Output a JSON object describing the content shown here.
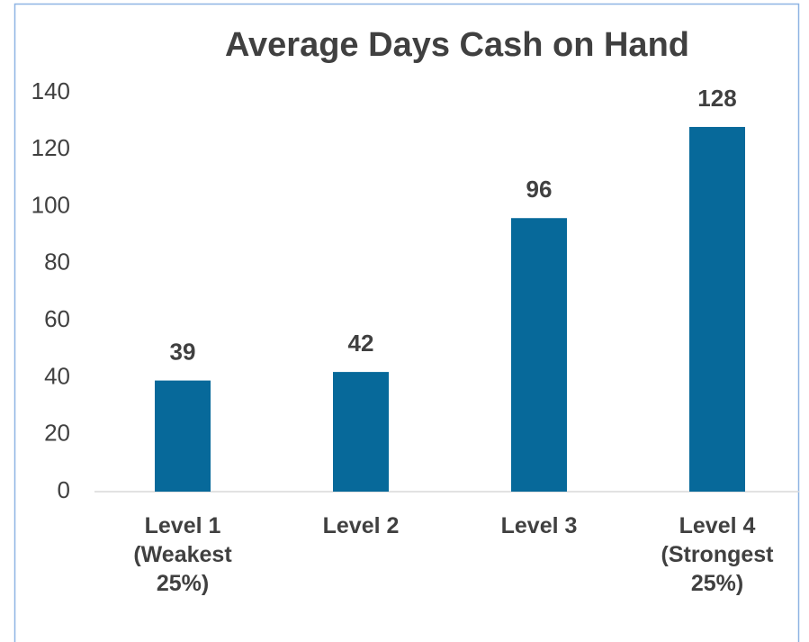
{
  "chart_data": {
    "type": "bar",
    "title": "Average Days Cash on Hand",
    "categories": [
      "Level 1\n(Weakest\n25%)",
      "Level 2",
      "Level 3",
      "Level 4\n(Strongest\n25%)"
    ],
    "values": [
      39,
      42,
      96,
      128
    ],
    "color": "#07699a",
    "ylim": [
      0,
      140
    ],
    "yticks": [
      0,
      20,
      40,
      60,
      80,
      100,
      120,
      140
    ],
    "grid": false
  }
}
